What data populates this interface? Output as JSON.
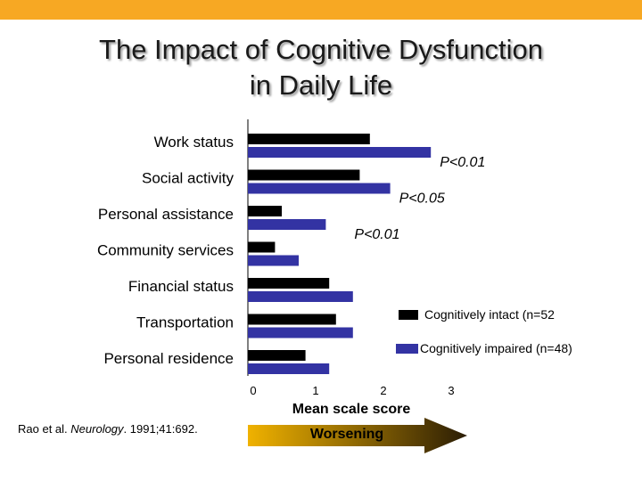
{
  "slide": {
    "title_line1": "The Impact of Cognitive Dysfunction",
    "title_line2": "in Daily Life",
    "citation_authors": "Rao et al.",
    "citation_journal": "Neurology",
    "citation_rest": ". 1991;41:692.",
    "arrow_label": "Worsening"
  },
  "colors": {
    "accent_bar": "#f7a823",
    "intact": "#000000",
    "impaired": "#3333a3",
    "arrow_start": "#f0b200",
    "arrow_end": "#2b1d05"
  },
  "chart_data": {
    "type": "bar",
    "orientation": "horizontal",
    "categories": [
      "Work status",
      "Social activity",
      "Personal assistance",
      "Community services",
      "Financial status",
      "Transportation",
      "Personal residence"
    ],
    "series": [
      {
        "name": "Cognitively intact (n=52",
        "values": [
          1.8,
          1.65,
          0.5,
          0.4,
          1.2,
          1.3,
          0.85
        ]
      },
      {
        "name": "Cognitively impaired (n=48)",
        "values": [
          2.7,
          2.1,
          1.15,
          0.75,
          1.55,
          1.55,
          1.2
        ]
      }
    ],
    "xlim": [
      0,
      3
    ],
    "xticks": [
      "0",
      "1",
      "2",
      "3"
    ],
    "xlabel": "Mean scale score",
    "annotations": [
      {
        "category": "Work status",
        "text": "P<0.01"
      },
      {
        "category": "Social activity",
        "text": "P<0.05"
      },
      {
        "category": "Personal assistance",
        "text": "P<0.01"
      }
    ],
    "legend_position": "right"
  }
}
